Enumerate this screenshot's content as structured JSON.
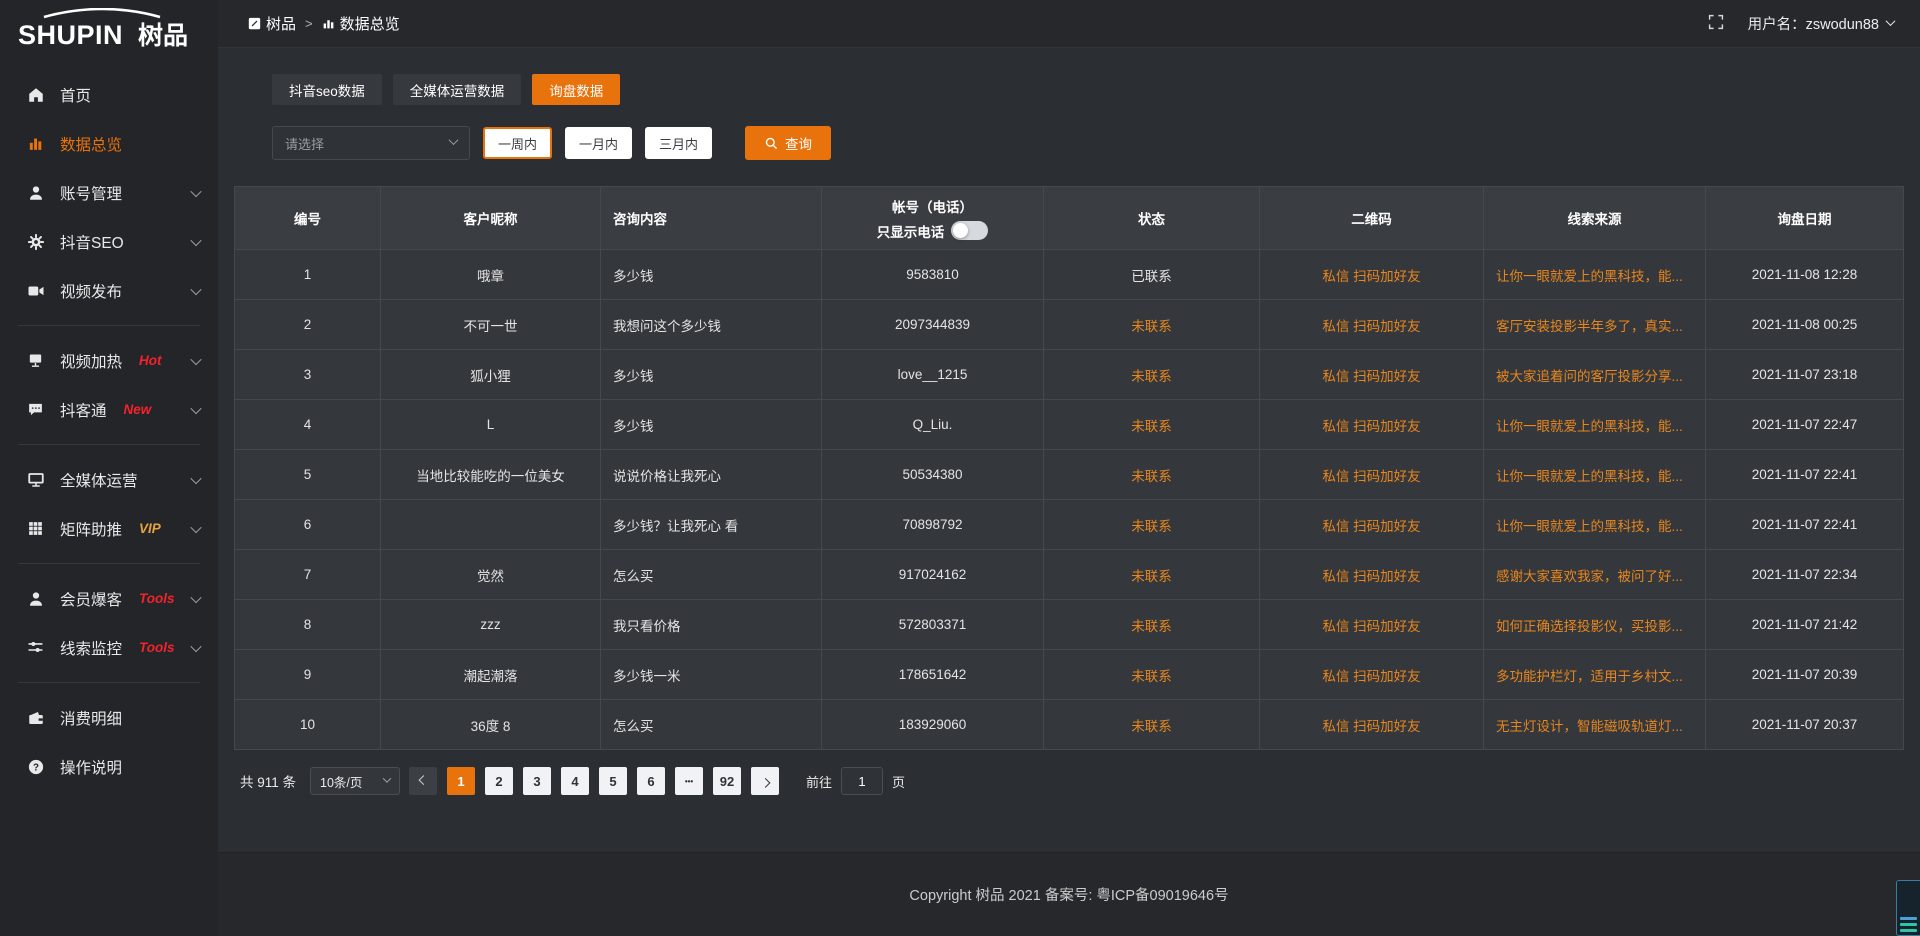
{
  "colors": {
    "accent_orange": "#e8720c",
    "table_link_orange": "#e8871e",
    "badge_red": "#f5222d",
    "badge_vip_gold": "#e6a23c",
    "sidebar_bg": "#232528",
    "content_bg": "#2b2e32",
    "table_bg": "#34373c"
  },
  "sidebar": {
    "logo": {
      "en": "SHUPIN",
      "cn": "树品"
    },
    "items": [
      {
        "icon": "home",
        "label": "首页",
        "chevron": false
      },
      {
        "icon": "chart",
        "label": "数据总览",
        "active": true,
        "chevron": false
      },
      {
        "icon": "user",
        "label": "账号管理",
        "chevron": true
      },
      {
        "icon": "gear",
        "label": "抖音SEO",
        "chevron": true
      },
      {
        "icon": "video",
        "label": "视频发布",
        "chevron": true
      },
      {
        "divider": true
      },
      {
        "icon": "heat",
        "label": "视频加热",
        "badge": "Hot",
        "badge_color": "#f5222d",
        "chevron": true
      },
      {
        "icon": "chat",
        "label": "抖客通",
        "badge": "New",
        "badge_color": "#f5222d",
        "chevron": true
      },
      {
        "divider": true
      },
      {
        "icon": "monitor",
        "label": "全媒体运营",
        "chevron": true
      },
      {
        "icon": "grid",
        "label": "矩阵助推",
        "badge": "VIP",
        "badge_color": "#e6a23c",
        "chevron": true
      },
      {
        "divider": true
      },
      {
        "icon": "member",
        "label": "会员爆客",
        "badge": "Tools",
        "badge_color": "#f5222d",
        "chevron": true
      },
      {
        "icon": "sliders",
        "label": "线索监控",
        "badge": "Tools",
        "badge_color": "#f5222d",
        "chevron": true
      },
      {
        "divider": true
      },
      {
        "icon": "wallet",
        "label": "消费明细",
        "chevron": false
      },
      {
        "icon": "question",
        "label": "操作说明",
        "chevron": false
      }
    ]
  },
  "topbar": {
    "breadcrumb": {
      "root": "树品",
      "separator": ">",
      "current": "数据总览"
    },
    "username": "用户名：zswodun88"
  },
  "tabs": [
    {
      "label": "抖音seo数据",
      "active": false
    },
    {
      "label": "全媒体运营数据",
      "active": false
    },
    {
      "label": "询盘数据",
      "active": true
    }
  ],
  "filters": {
    "select_placeholder": "请选择",
    "periods": [
      {
        "label": "一周内",
        "active": true
      },
      {
        "label": "一月内",
        "active": false
      },
      {
        "label": "三月内",
        "active": false
      }
    ],
    "query_label": "查询"
  },
  "table": {
    "headers": {
      "id": "编号",
      "nickname": "客户昵称",
      "inquiry": "咨询内容",
      "account_title": "帐号（电话）",
      "account_toggle": "只显示电话",
      "status": "状态",
      "qrcode": "二维码",
      "source": "线索来源",
      "date": "询盘日期"
    },
    "rows": [
      {
        "id": "1",
        "nickname": "哦章",
        "inquiry": "多少钱",
        "account": "9583810",
        "status": "已联系",
        "contacted": true,
        "qrcode": "私信 扫码加好友",
        "source": "让你一眼就爱上的黑科技，能...",
        "date": "2021-11-08 12:28"
      },
      {
        "id": "2",
        "nickname": "不可一世",
        "inquiry": "我想问这个多少钱",
        "account": "2097344839",
        "status": "未联系",
        "contacted": false,
        "qrcode": "私信 扫码加好友",
        "source": "客厅安装投影半年多了，真实...",
        "date": "2021-11-08 00:25"
      },
      {
        "id": "3",
        "nickname": "狐小狸",
        "inquiry": "多少钱",
        "account": "love__1215",
        "status": "未联系",
        "contacted": false,
        "qrcode": "私信 扫码加好友",
        "source": "被大家追着问的客厅投影分享...",
        "date": "2021-11-07 23:18"
      },
      {
        "id": "4",
        "nickname": "L",
        "inquiry": "多少钱",
        "account": "Q_Liu.",
        "status": "未联系",
        "contacted": false,
        "qrcode": "私信 扫码加好友",
        "source": "让你一眼就爱上的黑科技，能...",
        "date": "2021-11-07 22:47"
      },
      {
        "id": "5",
        "nickname": "当地比较能吃的一位美女",
        "inquiry": "说说价格让我死心",
        "account": "50534380",
        "status": "未联系",
        "contacted": false,
        "qrcode": "私信 扫码加好友",
        "source": "让你一眼就爱上的黑科技，能...",
        "date": "2021-11-07 22:41"
      },
      {
        "id": "6",
        "nickname": "",
        "inquiry": "多少钱？让我死心 看",
        "account": "70898792",
        "status": "未联系",
        "contacted": false,
        "qrcode": "私信 扫码加好友",
        "source": "让你一眼就爱上的黑科技，能...",
        "date": "2021-11-07 22:41"
      },
      {
        "id": "7",
        "nickname": "觉然",
        "inquiry": "怎么买",
        "account": "917024162",
        "status": "未联系",
        "contacted": false,
        "qrcode": "私信 扫码加好友",
        "source": "感谢大家喜欢我家，被问了好...",
        "date": "2021-11-07 22:34"
      },
      {
        "id": "8",
        "nickname": "zzz",
        "inquiry": "我只看价格",
        "account": "572803371",
        "status": "未联系",
        "contacted": false,
        "qrcode": "私信 扫码加好友",
        "source": "如何正确选择投影仪，买投影...",
        "date": "2021-11-07 21:42"
      },
      {
        "id": "9",
        "nickname": "潮起潮落",
        "inquiry": "多少钱一米",
        "account": "178651642",
        "status": "未联系",
        "contacted": false,
        "qrcode": "私信 扫码加好友",
        "source": "多功能护栏灯，适用于乡村文...",
        "date": "2021-11-07 20:39"
      },
      {
        "id": "10",
        "nickname": "36度 8",
        "inquiry": "怎么买",
        "account": "183929060",
        "status": "未联系",
        "contacted": false,
        "qrcode": "私信 扫码加好友",
        "source": "无主灯设计，智能磁吸轨道灯...",
        "date": "2021-11-07 20:37"
      }
    ]
  },
  "pagination": {
    "total": "共 911 条",
    "page_size": "10条/页",
    "pages": [
      "1",
      "2",
      "3",
      "4",
      "5",
      "6",
      "...",
      "92"
    ],
    "active_page": "1",
    "goto_prefix": "前往",
    "goto_value": "1",
    "goto_suffix": "页"
  },
  "footer": {
    "copyright": "Copyright 树品 2021 备案号: 粤ICP备09019646号"
  }
}
